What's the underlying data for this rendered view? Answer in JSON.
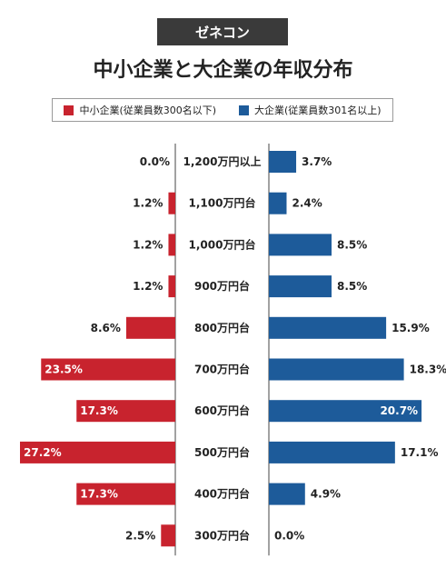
{
  "badge": "ゼネコン",
  "chart_data": {
    "type": "bar",
    "title": "中小企業と大企業の年収分布",
    "categories": [
      "1,200万円以上",
      "1,100万円台",
      "1,000万円台",
      "900万円台",
      "800万円台",
      "700万円台",
      "600万円台",
      "500万円台",
      "400万円台",
      "300万円台"
    ],
    "series": [
      {
        "name": "中小企業(従業員数300名以下)",
        "color": "#c8232e",
        "values": [
          0.0,
          1.2,
          1.2,
          1.2,
          8.6,
          23.5,
          17.3,
          27.2,
          17.3,
          2.5
        ],
        "labels": [
          "0.0%",
          "1.2%",
          "1.2%",
          "1.2%",
          "8.6%",
          "23.5%",
          "17.3%",
          "27.2%",
          "17.3%",
          "2.5%"
        ]
      },
      {
        "name": "大企業(従業員数301名以上)",
        "color": "#1d5b9a",
        "values": [
          3.7,
          2.4,
          8.5,
          8.5,
          15.9,
          18.3,
          20.7,
          17.1,
          4.9,
          0.0
        ],
        "labels": [
          "3.7%",
          "2.4%",
          "8.5%",
          "8.5%",
          "15.9%",
          "18.3%",
          "20.7%",
          "17.1%",
          "4.9%",
          "0.0%"
        ]
      }
    ],
    "xlim": [
      0,
      27.2
    ],
    "legend": "top",
    "grid": false
  }
}
